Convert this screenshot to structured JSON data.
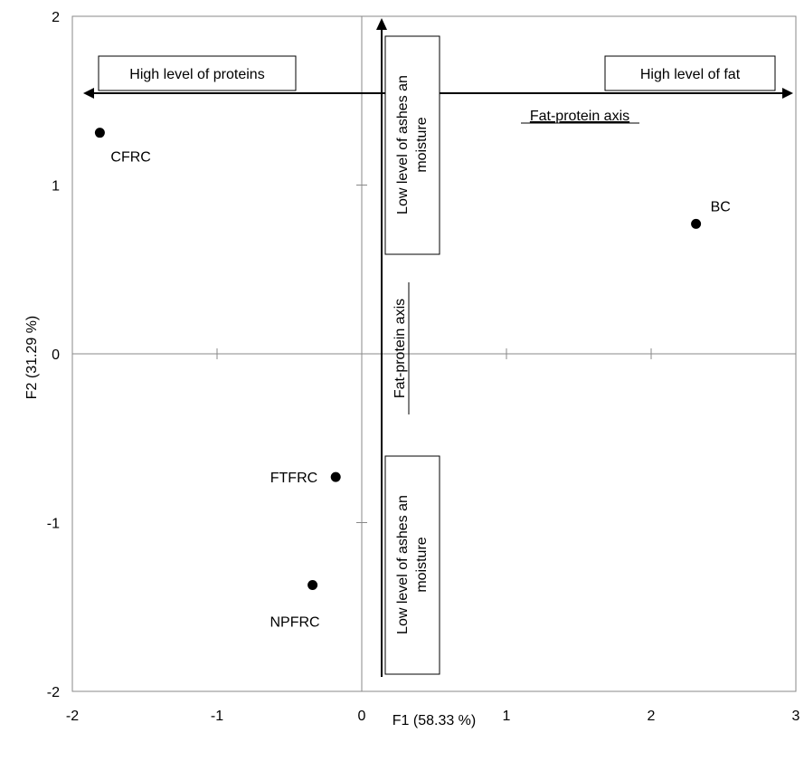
{
  "chart_data": {
    "type": "scatter",
    "xlabel": "F1 (58.33 %)",
    "ylabel": "F2 (31.29 %)",
    "xlim": [
      -2,
      3
    ],
    "ylim": [
      -2,
      2
    ],
    "x_ticks": [
      "-2",
      "-1",
      "0",
      "1",
      "2",
      "3"
    ],
    "y_ticks": [
      "2",
      "1",
      "0",
      "-1",
      "-2"
    ],
    "grid": false,
    "points": [
      {
        "label": "CFRC",
        "x": -1.81,
        "y": 1.31
      },
      {
        "label": "BC",
        "x": 2.31,
        "y": 0.77
      },
      {
        "label": "FTFRC",
        "x": -0.18,
        "y": -0.73
      },
      {
        "label": "NPFRC",
        "x": -0.34,
        "y": -1.37
      }
    ],
    "annotations": {
      "high_proteins": "High level of proteins",
      "high_fat": "High level of fat",
      "fat_protein_axis_h": "Fat-protein axis",
      "fat_protein_axis_v": "Fat-protein axis",
      "low_ashes_top_line1": "Low level of ashes an",
      "low_ashes_top_line2": "moisture",
      "low_ashes_bottom_line1": "Low level of ashes an",
      "low_ashes_bottom_line2": "moisture"
    }
  }
}
